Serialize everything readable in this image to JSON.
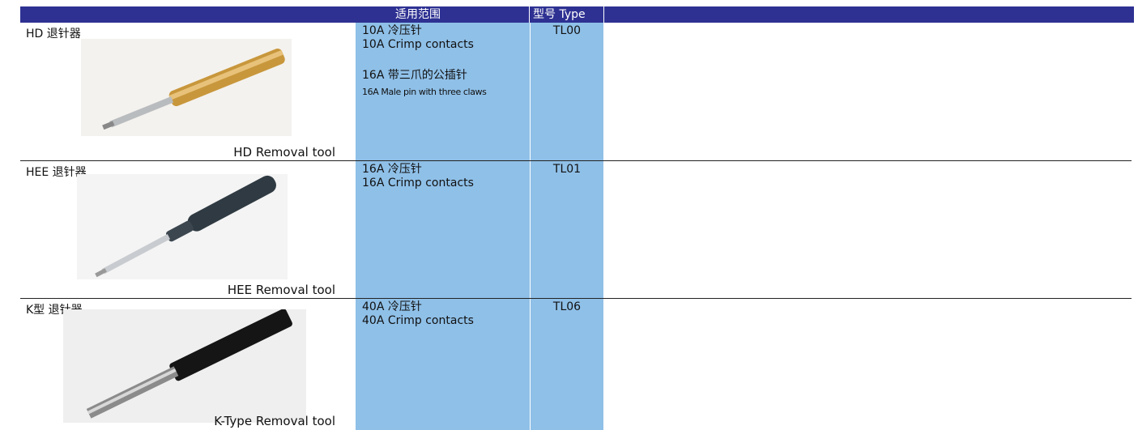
{
  "header": {
    "columns": [
      "适用范围",
      "型号 Type"
    ]
  },
  "rows": [
    {
      "name": "HD 退针器",
      "caption": "HD Removal tool",
      "application": [
        [
          "10A 冷压针",
          "10A Crimp contacts"
        ],
        [
          "16A 带三爪的公插针",
          "16A Male pin with three claws"
        ]
      ],
      "type": "TL00"
    },
    {
      "name": "HEE 退针器",
      "caption": "HEE Removal tool",
      "application": [
        [
          "16A 冷压针",
          "16A Crimp contacts"
        ]
      ],
      "type": "TL01"
    },
    {
      "name": "K型 退针器",
      "caption": "K-Type Removal tool",
      "application": [
        [
          "40A 冷压针",
          "40A Crimp contacts"
        ]
      ],
      "type": "TL06"
    }
  ]
}
